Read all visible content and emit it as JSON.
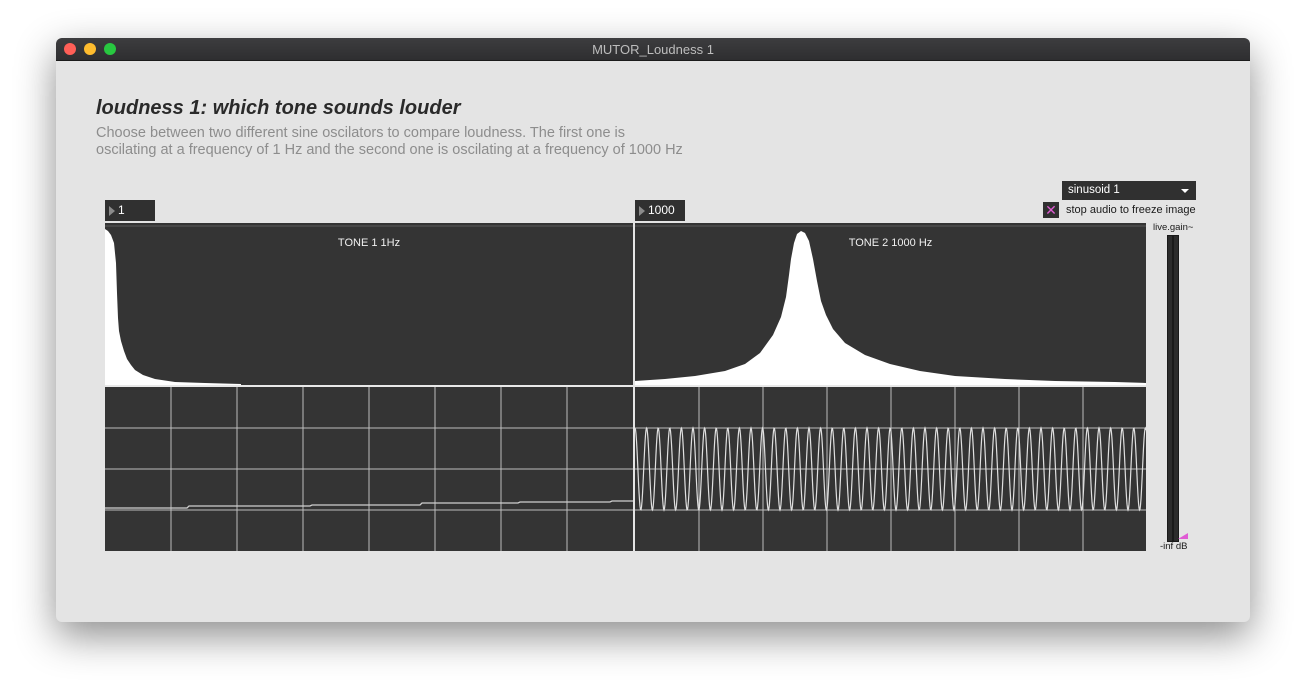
{
  "window": {
    "title": "MUTOR_Loudness 1"
  },
  "header": {
    "title": "loudness 1: which tone sounds louder",
    "description_line1": "Choose between two different sine oscilators to compare loudness. The first one is",
    "description_line2": "oscilating at a frequency of 1 Hz and the second one is oscilating at a frequency of 1000 Hz"
  },
  "controls": {
    "osc1_freq": "1",
    "osc2_freq": "1000",
    "waveform_menu": "sinusoid 1",
    "freeze_toggle_label": "stop audio to freeze image",
    "freeze_toggle_checked": true
  },
  "displays": {
    "tone1_label": "TONE 1 1Hz",
    "tone2_label": "TONE 2 1000 Hz"
  },
  "gain": {
    "label": "live.gain~",
    "value_text": "-inf dB",
    "marker_color": "#e05cd4"
  },
  "colors": {
    "window_bg": "#e4e4e4",
    "panel_bg": "#343434",
    "spectrum_fill": "#ffffff",
    "grid": "#bdbdbd",
    "accent": "#e05cd4"
  }
}
